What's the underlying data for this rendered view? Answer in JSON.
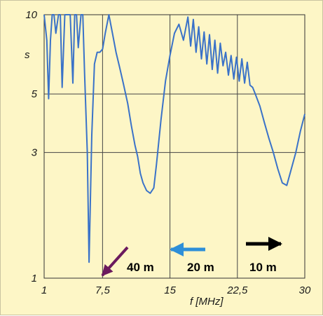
{
  "chart_data": {
    "type": "line",
    "title": "",
    "xlabel": "f [MHz]",
    "ylabel": "s",
    "xlim": [
      1,
      30
    ],
    "ylim": [
      1,
      10
    ],
    "y_scale": "log",
    "x_ticks": [
      "1",
      "7,5",
      "15",
      "22,5",
      "30"
    ],
    "x_tick_values": [
      1,
      7.5,
      15,
      22.5,
      30
    ],
    "y_ticks": [
      "10",
      "5",
      "3",
      "1"
    ],
    "y_tick_values": [
      10,
      5,
      3,
      1
    ],
    "grid": true,
    "series": [
      {
        "x": [
          1.0,
          1.3,
          1.5,
          1.7,
          1.9,
          2.1,
          2.3,
          2.6,
          2.8,
          3.0,
          3.3,
          3.6,
          3.9,
          4.2,
          4.4,
          4.6,
          4.8,
          5.1,
          5.3,
          5.5,
          5.8,
          6.0,
          6.3,
          6.6,
          6.9,
          7.2,
          7.5,
          7.8,
          8.2,
          8.6,
          9.0,
          9.4,
          9.8,
          10.3,
          10.7,
          11.1,
          11.4,
          11.7,
          12.0,
          12.4,
          12.8,
          13.2,
          13.5,
          14.0,
          14.5,
          15.0,
          15.5,
          16.0,
          16.5,
          17.0,
          17.3,
          17.6,
          17.9,
          18.2,
          18.5,
          18.8,
          19.1,
          19.4,
          19.7,
          20.0,
          20.3,
          20.6,
          20.9,
          21.2,
          21.5,
          21.8,
          22.1,
          22.4,
          22.7,
          23.0,
          23.3,
          23.6,
          23.9,
          24.2,
          24.5,
          25.0,
          25.5,
          26.0,
          26.5,
          27.0,
          27.5,
          28.0,
          28.5,
          29.0,
          29.5,
          30.0
        ],
        "y": [
          10,
          8,
          4.8,
          8,
          10,
          10,
          8.5,
          10,
          10,
          5.3,
          10,
          10,
          10,
          5.5,
          10,
          10,
          7.5,
          10,
          10,
          6,
          3,
          1.15,
          3.5,
          6.5,
          7.2,
          7.2,
          7.4,
          8.5,
          10,
          8.5,
          7.2,
          6.3,
          5.5,
          4.6,
          3.8,
          3.2,
          2.9,
          2.5,
          2.3,
          2.15,
          2.1,
          2.2,
          2.7,
          4.0,
          5.6,
          7.0,
          8.5,
          9.2,
          8.0,
          9.8,
          7.6,
          9.6,
          7.2,
          9.0,
          6.8,
          8.6,
          6.5,
          8.4,
          6.2,
          8.0,
          6.0,
          7.8,
          6.4,
          7.2,
          5.9,
          7.0,
          5.7,
          6.9,
          5.6,
          6.8,
          5.5,
          6.6,
          5.4,
          5.3,
          5.0,
          4.5,
          3.9,
          3.4,
          3.0,
          2.6,
          2.3,
          2.25,
          2.6,
          3.0,
          3.6,
          4.2
        ],
        "color": "#3a72c8"
      }
    ],
    "annotations": [
      {
        "text": "40 m",
        "x": 6.0,
        "y": 1.15,
        "arrow_color": "#6b1a5e"
      },
      {
        "text": "20 m",
        "x": 14.0,
        "y": 2.1,
        "arrow_color": "#2e8fd8"
      },
      {
        "text": "10 m",
        "x": 27.0,
        "y": 2.25,
        "arrow_color": "#000000"
      }
    ]
  }
}
